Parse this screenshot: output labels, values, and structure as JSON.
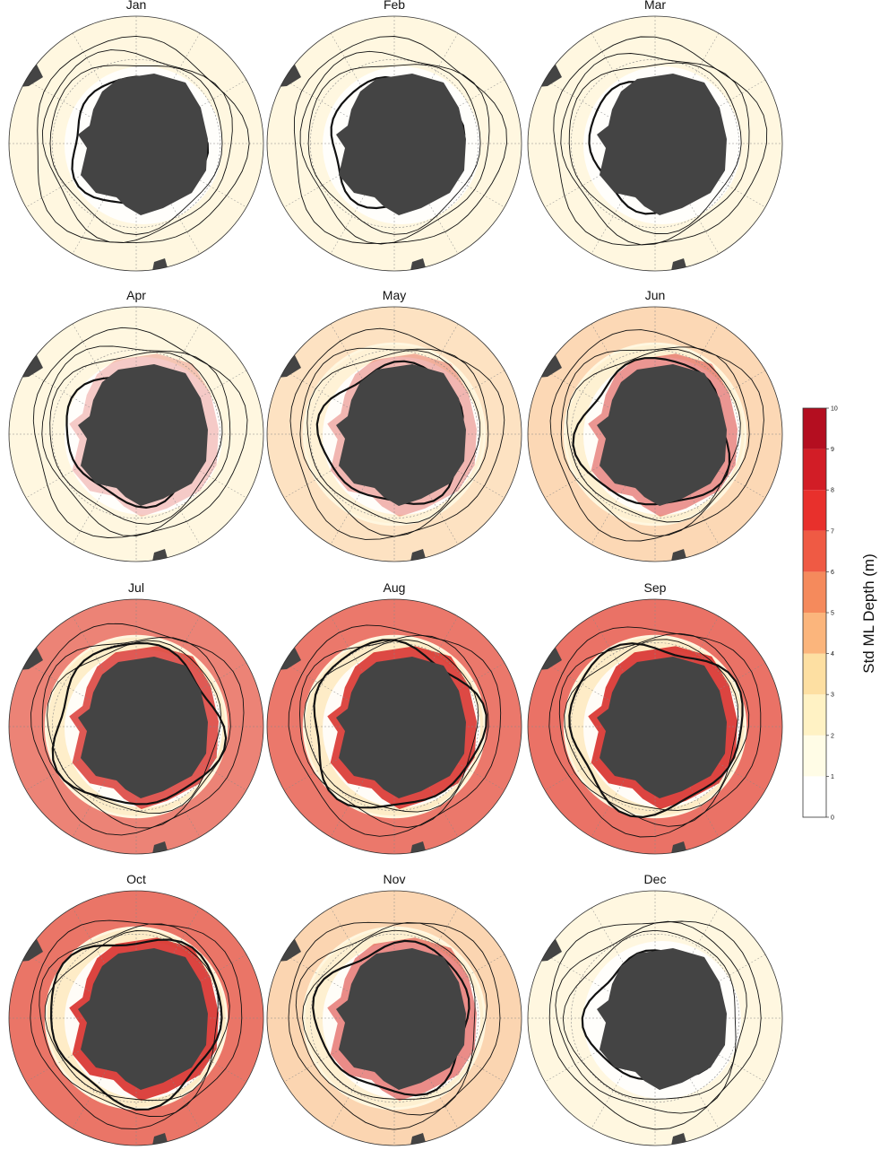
{
  "figure": {
    "months": [
      "Jan",
      "Feb",
      "Mar",
      "Apr",
      "May",
      "Jun",
      "Jul",
      "Aug",
      "Sep",
      "Oct",
      "Nov",
      "Dec"
    ],
    "colorbar": {
      "label": "Std ML Depth (m)",
      "ticks": [
        "0",
        "1",
        "2",
        "3",
        "4",
        "5",
        "6",
        "7",
        "8",
        "9",
        "10"
      ],
      "colors": [
        "#ffffff",
        "#fffce6",
        "#fff2c4",
        "#fddfa2",
        "#fbb57c",
        "#f58a5c",
        "#ef5a44",
        "#e8302c",
        "#d21d26",
        "#b40e20"
      ]
    },
    "monthly_intensity": [
      0.12,
      0.1,
      0.12,
      0.25,
      0.35,
      0.5,
      0.8,
      0.88,
      0.92,
      0.9,
      0.55,
      0.15
    ],
    "colors": {
      "land": "#444444",
      "ocean_base": "#fff7e0",
      "contour": "#111111",
      "graticule": "#888888"
    }
  }
}
